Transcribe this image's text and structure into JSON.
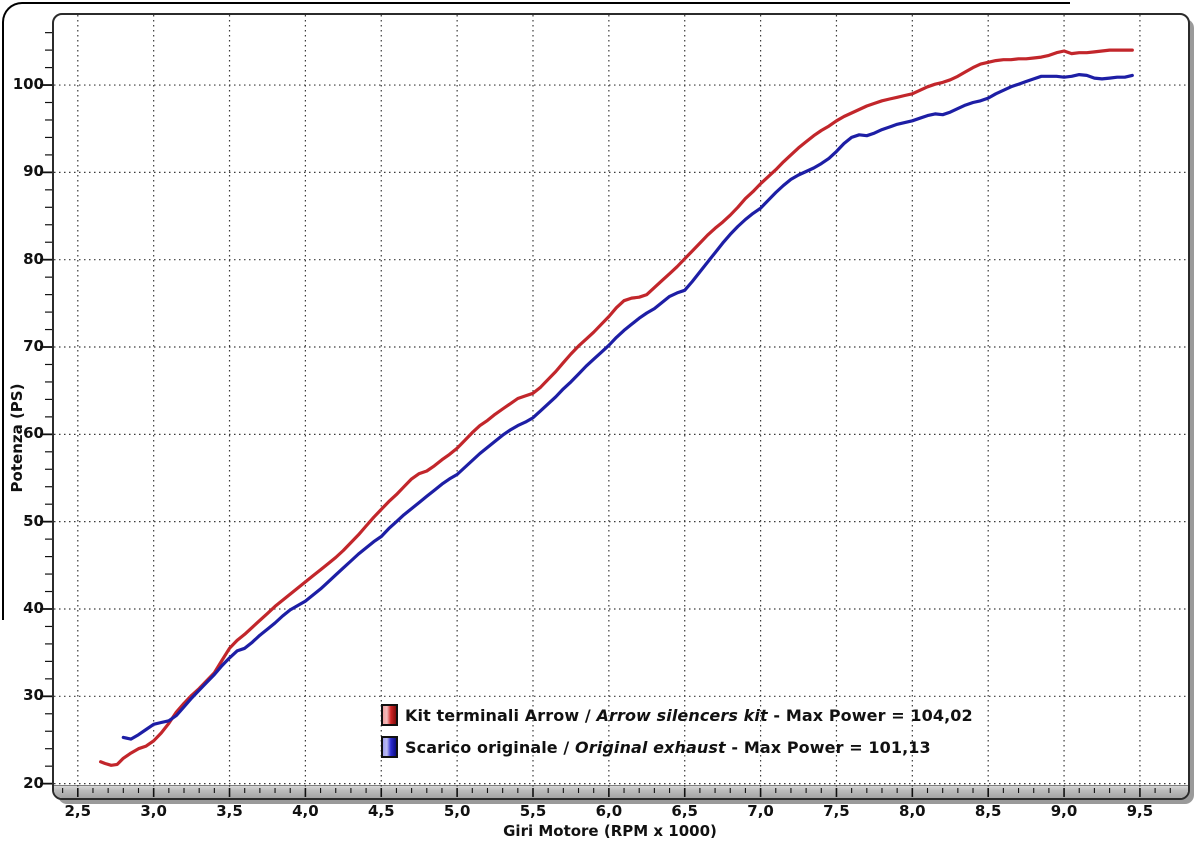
{
  "chart_data": {
    "type": "line",
    "title": "",
    "xlabel": "Giri Motore (RPM x 1000)",
    "ylabel": "Potenza (PS)",
    "xlim": [
      2.33,
      9.83
    ],
    "ylim": [
      19.5,
      108.25
    ],
    "grid": "dotted major gridlines both axes",
    "grid_color": "#3a3a3a",
    "legend_position": "bottom-center-inside",
    "x_minor_step": 0.1,
    "y_minor_step": 2,
    "x_major_ticks": [
      {
        "v": 2.5,
        "label": "2,5"
      },
      {
        "v": 3.0,
        "label": "3,0"
      },
      {
        "v": 3.5,
        "label": "3,5"
      },
      {
        "v": 4.0,
        "label": "4,0"
      },
      {
        "v": 4.5,
        "label": "4,5"
      },
      {
        "v": 5.0,
        "label": "5,0"
      },
      {
        "v": 5.5,
        "label": "5,5"
      },
      {
        "v": 6.0,
        "label": "6,0"
      },
      {
        "v": 6.5,
        "label": "6,5"
      },
      {
        "v": 7.0,
        "label": "7,0"
      },
      {
        "v": 7.5,
        "label": "7,5"
      },
      {
        "v": 8.0,
        "label": "8,0"
      },
      {
        "v": 8.5,
        "label": "8,5"
      },
      {
        "v": 9.0,
        "label": "9,0"
      },
      {
        "v": 9.5,
        "label": "9,5"
      }
    ],
    "y_major_ticks": [
      {
        "v": 20,
        "label": "20"
      },
      {
        "v": 30,
        "label": "30"
      },
      {
        "v": 40,
        "label": "40"
      },
      {
        "v": 50,
        "label": "50"
      },
      {
        "v": 60,
        "label": "60"
      },
      {
        "v": 70,
        "label": "70"
      },
      {
        "v": 80,
        "label": "80"
      },
      {
        "v": 90,
        "label": "90"
      },
      {
        "v": 100,
        "label": "100"
      }
    ],
    "series": [
      {
        "id": "arrow-kit",
        "name": "Kit terminali Arrow / Arrow silencers kit",
        "max_power": "104,02",
        "color": "#c2262b",
        "points": [
          [
            2.65,
            22.5
          ],
          [
            2.68,
            22.3
          ],
          [
            2.72,
            22.1
          ],
          [
            2.76,
            22.2
          ],
          [
            2.8,
            22.9
          ],
          [
            2.85,
            23.5
          ],
          [
            2.9,
            24.0
          ],
          [
            2.95,
            24.3
          ],
          [
            3.0,
            24.9
          ],
          [
            3.05,
            25.8
          ],
          [
            3.1,
            26.9
          ],
          [
            3.15,
            28.2
          ],
          [
            3.2,
            29.2
          ],
          [
            3.25,
            30.1
          ],
          [
            3.3,
            30.9
          ],
          [
            3.35,
            31.8
          ],
          [
            3.4,
            32.7
          ],
          [
            3.45,
            34.1
          ],
          [
            3.5,
            35.5
          ],
          [
            3.55,
            36.4
          ],
          [
            3.6,
            37.1
          ],
          [
            3.65,
            37.9
          ],
          [
            3.7,
            38.7
          ],
          [
            3.75,
            39.5
          ],
          [
            3.8,
            40.3
          ],
          [
            3.85,
            41.0
          ],
          [
            3.9,
            41.7
          ],
          [
            3.95,
            42.4
          ],
          [
            4.0,
            43.1
          ],
          [
            4.05,
            43.8
          ],
          [
            4.1,
            44.5
          ],
          [
            4.15,
            45.2
          ],
          [
            4.2,
            45.9
          ],
          [
            4.25,
            46.7
          ],
          [
            4.3,
            47.6
          ],
          [
            4.35,
            48.5
          ],
          [
            4.4,
            49.5
          ],
          [
            4.45,
            50.5
          ],
          [
            4.5,
            51.4
          ],
          [
            4.55,
            52.3
          ],
          [
            4.6,
            53.1
          ],
          [
            4.65,
            54.0
          ],
          [
            4.7,
            54.9
          ],
          [
            4.75,
            55.5
          ],
          [
            4.8,
            55.8
          ],
          [
            4.85,
            56.4
          ],
          [
            4.9,
            57.1
          ],
          [
            4.95,
            57.7
          ],
          [
            5.0,
            58.4
          ],
          [
            5.05,
            59.3
          ],
          [
            5.1,
            60.2
          ],
          [
            5.15,
            61.0
          ],
          [
            5.2,
            61.6
          ],
          [
            5.25,
            62.3
          ],
          [
            5.3,
            62.9
          ],
          [
            5.35,
            63.5
          ],
          [
            5.4,
            64.1
          ],
          [
            5.45,
            64.4
          ],
          [
            5.5,
            64.7
          ],
          [
            5.55,
            65.4
          ],
          [
            5.6,
            66.3
          ],
          [
            5.65,
            67.2
          ],
          [
            5.7,
            68.2
          ],
          [
            5.75,
            69.2
          ],
          [
            5.8,
            70.1
          ],
          [
            5.85,
            70.9
          ],
          [
            5.9,
            71.7
          ],
          [
            5.95,
            72.6
          ],
          [
            6.0,
            73.5
          ],
          [
            6.05,
            74.5
          ],
          [
            6.1,
            75.3
          ],
          [
            6.15,
            75.6
          ],
          [
            6.2,
            75.7
          ],
          [
            6.25,
            76.0
          ],
          [
            6.3,
            76.8
          ],
          [
            6.35,
            77.6
          ],
          [
            6.4,
            78.4
          ],
          [
            6.45,
            79.2
          ],
          [
            6.5,
            80.1
          ],
          [
            6.55,
            81.0
          ],
          [
            6.6,
            81.9
          ],
          [
            6.65,
            82.8
          ],
          [
            6.7,
            83.6
          ],
          [
            6.75,
            84.3
          ],
          [
            6.8,
            85.1
          ],
          [
            6.85,
            86.0
          ],
          [
            6.9,
            87.0
          ],
          [
            6.95,
            87.8
          ],
          [
            7.0,
            88.7
          ],
          [
            7.05,
            89.5
          ],
          [
            7.1,
            90.3
          ],
          [
            7.15,
            91.2
          ],
          [
            7.2,
            92.0
          ],
          [
            7.25,
            92.8
          ],
          [
            7.3,
            93.5
          ],
          [
            7.35,
            94.2
          ],
          [
            7.4,
            94.8
          ],
          [
            7.45,
            95.3
          ],
          [
            7.5,
            95.9
          ],
          [
            7.55,
            96.4
          ],
          [
            7.6,
            96.8
          ],
          [
            7.65,
            97.2
          ],
          [
            7.7,
            97.6
          ],
          [
            7.75,
            97.9
          ],
          [
            7.8,
            98.2
          ],
          [
            7.85,
            98.4
          ],
          [
            7.9,
            98.6
          ],
          [
            7.95,
            98.8
          ],
          [
            8.0,
            99.0
          ],
          [
            8.05,
            99.4
          ],
          [
            8.1,
            99.8
          ],
          [
            8.15,
            100.1
          ],
          [
            8.2,
            100.3
          ],
          [
            8.25,
            100.6
          ],
          [
            8.3,
            101.0
          ],
          [
            8.35,
            101.5
          ],
          [
            8.4,
            102.0
          ],
          [
            8.45,
            102.4
          ],
          [
            8.5,
            102.6
          ],
          [
            8.55,
            102.8
          ],
          [
            8.6,
            102.9
          ],
          [
            8.65,
            102.9
          ],
          [
            8.7,
            103.0
          ],
          [
            8.75,
            103.0
          ],
          [
            8.8,
            103.1
          ],
          [
            8.85,
            103.2
          ],
          [
            8.9,
            103.4
          ],
          [
            8.95,
            103.7
          ],
          [
            9.0,
            103.9
          ],
          [
            9.05,
            103.6
          ],
          [
            9.1,
            103.7
          ],
          [
            9.15,
            103.7
          ],
          [
            9.2,
            103.8
          ],
          [
            9.25,
            103.9
          ],
          [
            9.3,
            104.0
          ],
          [
            9.35,
            104.0
          ],
          [
            9.4,
            104.0
          ],
          [
            9.45,
            104.0
          ]
        ]
      },
      {
        "id": "original-exhaust",
        "name": "Scarico originale / Original exhaust",
        "max_power": "101,13",
        "color": "#1d1ea5",
        "points": [
          [
            2.8,
            25.3
          ],
          [
            2.85,
            25.1
          ],
          [
            2.9,
            25.6
          ],
          [
            2.95,
            26.2
          ],
          [
            3.0,
            26.8
          ],
          [
            3.05,
            27.0
          ],
          [
            3.1,
            27.2
          ],
          [
            3.15,
            27.8
          ],
          [
            3.2,
            28.8
          ],
          [
            3.25,
            29.8
          ],
          [
            3.3,
            30.7
          ],
          [
            3.35,
            31.6
          ],
          [
            3.4,
            32.5
          ],
          [
            3.45,
            33.5
          ],
          [
            3.5,
            34.4
          ],
          [
            3.55,
            35.2
          ],
          [
            3.6,
            35.5
          ],
          [
            3.65,
            36.2
          ],
          [
            3.7,
            37.0
          ],
          [
            3.75,
            37.7
          ],
          [
            3.8,
            38.4
          ],
          [
            3.85,
            39.2
          ],
          [
            3.9,
            39.9
          ],
          [
            3.95,
            40.4
          ],
          [
            4.0,
            40.9
          ],
          [
            4.05,
            41.6
          ],
          [
            4.1,
            42.3
          ],
          [
            4.15,
            43.1
          ],
          [
            4.2,
            43.9
          ],
          [
            4.25,
            44.7
          ],
          [
            4.3,
            45.5
          ],
          [
            4.35,
            46.3
          ],
          [
            4.4,
            47.0
          ],
          [
            4.45,
            47.7
          ],
          [
            4.5,
            48.3
          ],
          [
            4.55,
            49.2
          ],
          [
            4.6,
            50.0
          ],
          [
            4.65,
            50.8
          ],
          [
            4.7,
            51.5
          ],
          [
            4.75,
            52.2
          ],
          [
            4.8,
            52.9
          ],
          [
            4.85,
            53.6
          ],
          [
            4.9,
            54.3
          ],
          [
            4.95,
            54.9
          ],
          [
            5.0,
            55.4
          ],
          [
            5.05,
            56.2
          ],
          [
            5.1,
            57.0
          ],
          [
            5.15,
            57.8
          ],
          [
            5.2,
            58.5
          ],
          [
            5.25,
            59.2
          ],
          [
            5.3,
            59.9
          ],
          [
            5.35,
            60.5
          ],
          [
            5.4,
            61.0
          ],
          [
            5.45,
            61.4
          ],
          [
            5.5,
            61.9
          ],
          [
            5.55,
            62.7
          ],
          [
            5.6,
            63.5
          ],
          [
            5.65,
            64.3
          ],
          [
            5.7,
            65.2
          ],
          [
            5.75,
            66.0
          ],
          [
            5.8,
            66.9
          ],
          [
            5.85,
            67.8
          ],
          [
            5.9,
            68.6
          ],
          [
            5.95,
            69.4
          ],
          [
            6.0,
            70.2
          ],
          [
            6.05,
            71.1
          ],
          [
            6.1,
            71.9
          ],
          [
            6.15,
            72.6
          ],
          [
            6.2,
            73.3
          ],
          [
            6.25,
            73.9
          ],
          [
            6.3,
            74.4
          ],
          [
            6.35,
            75.1
          ],
          [
            6.4,
            75.8
          ],
          [
            6.45,
            76.2
          ],
          [
            6.5,
            76.5
          ],
          [
            6.55,
            77.5
          ],
          [
            6.6,
            78.6
          ],
          [
            6.65,
            79.7
          ],
          [
            6.7,
            80.8
          ],
          [
            6.75,
            81.9
          ],
          [
            6.8,
            82.9
          ],
          [
            6.85,
            83.8
          ],
          [
            6.9,
            84.6
          ],
          [
            6.95,
            85.3
          ],
          [
            7.0,
            85.9
          ],
          [
            7.05,
            86.8
          ],
          [
            7.1,
            87.7
          ],
          [
            7.15,
            88.5
          ],
          [
            7.2,
            89.2
          ],
          [
            7.25,
            89.7
          ],
          [
            7.3,
            90.1
          ],
          [
            7.35,
            90.5
          ],
          [
            7.4,
            91.0
          ],
          [
            7.45,
            91.6
          ],
          [
            7.5,
            92.4
          ],
          [
            7.55,
            93.3
          ],
          [
            7.6,
            94.0
          ],
          [
            7.65,
            94.3
          ],
          [
            7.7,
            94.2
          ],
          [
            7.75,
            94.5
          ],
          [
            7.8,
            94.9
          ],
          [
            7.85,
            95.2
          ],
          [
            7.9,
            95.5
          ],
          [
            7.95,
            95.7
          ],
          [
            8.0,
            95.9
          ],
          [
            8.05,
            96.2
          ],
          [
            8.1,
            96.5
          ],
          [
            8.15,
            96.7
          ],
          [
            8.2,
            96.6
          ],
          [
            8.25,
            96.9
          ],
          [
            8.3,
            97.3
          ],
          [
            8.35,
            97.7
          ],
          [
            8.4,
            98.0
          ],
          [
            8.45,
            98.2
          ],
          [
            8.5,
            98.5
          ],
          [
            8.55,
            99.0
          ],
          [
            8.6,
            99.4
          ],
          [
            8.65,
            99.8
          ],
          [
            8.7,
            100.1
          ],
          [
            8.75,
            100.4
          ],
          [
            8.8,
            100.7
          ],
          [
            8.85,
            101.0
          ],
          [
            8.9,
            101.0
          ],
          [
            8.95,
            101.0
          ],
          [
            9.0,
            100.9
          ],
          [
            9.05,
            101.0
          ],
          [
            9.1,
            101.2
          ],
          [
            9.15,
            101.1
          ],
          [
            9.2,
            100.8
          ],
          [
            9.25,
            100.7
          ],
          [
            9.3,
            100.8
          ],
          [
            9.35,
            100.9
          ],
          [
            9.4,
            100.9
          ],
          [
            9.45,
            101.1
          ]
        ]
      }
    ],
    "legend": [
      {
        "series": "arrow-kit",
        "swatch_colors": [
          "#eda0a0",
          "#f3bcbc",
          "#d22626",
          "#7e0c0c"
        ],
        "parts": [
          {
            "text": "Kit terminali Arrow / ",
            "italic": false
          },
          {
            "text": "Arrow silencers kit",
            "italic": true
          },
          {
            "text": " - Max Power = 104,02",
            "italic": false
          }
        ]
      },
      {
        "series": "original-exhaust",
        "swatch_colors": [
          "#a0a0ed",
          "#bcbcf3",
          "#2c2cd2",
          "#0c0c7e"
        ],
        "parts": [
          {
            "text": "Scarico originale / ",
            "italic": false
          },
          {
            "text": "Original exhaust",
            "italic": true
          },
          {
            "text": " - Max Power = 101,13",
            "italic": false
          }
        ]
      }
    ]
  }
}
